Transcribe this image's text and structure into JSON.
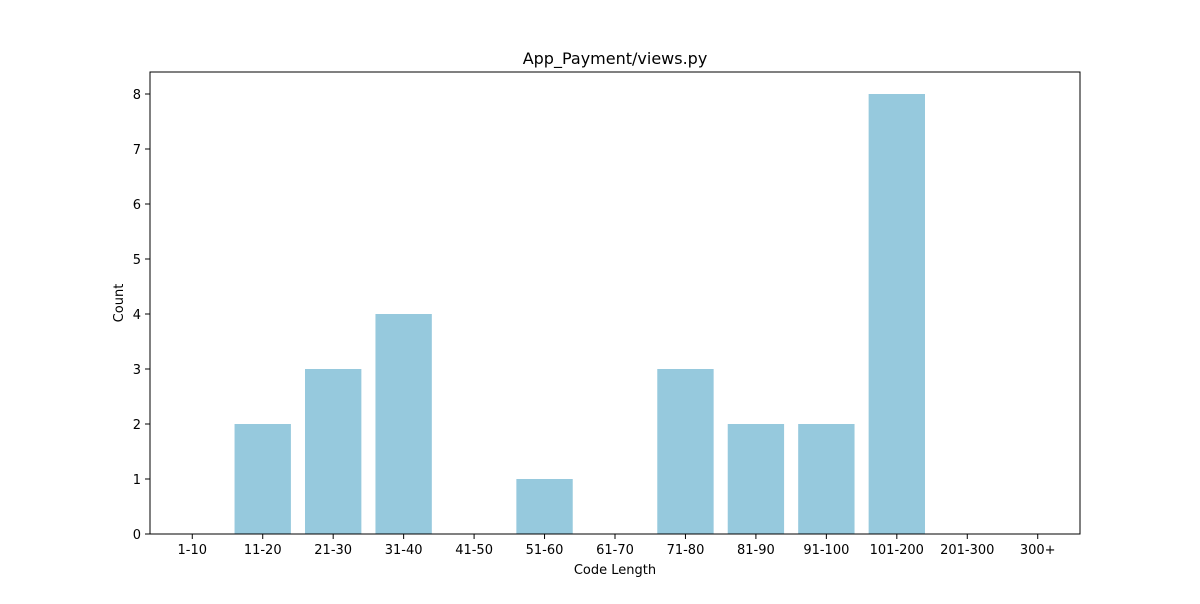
{
  "chart_data": {
    "type": "bar",
    "title": "App_Payment/views.py",
    "xlabel": "Code Length",
    "ylabel": "Count",
    "categories": [
      "1-10",
      "11-20",
      "21-30",
      "31-40",
      "41-50",
      "51-60",
      "61-70",
      "71-80",
      "81-90",
      "91-100",
      "101-200",
      "201-300",
      "300+"
    ],
    "values": [
      0,
      2,
      3,
      4,
      0,
      1,
      0,
      3,
      2,
      2,
      8,
      0,
      0
    ],
    "yticks": [
      "0",
      "1",
      "2",
      "3",
      "4",
      "5",
      "6",
      "7",
      "8"
    ],
    "ylim": [
      0,
      8.4
    ],
    "grid": false,
    "bar_color": "#96c9dd"
  }
}
